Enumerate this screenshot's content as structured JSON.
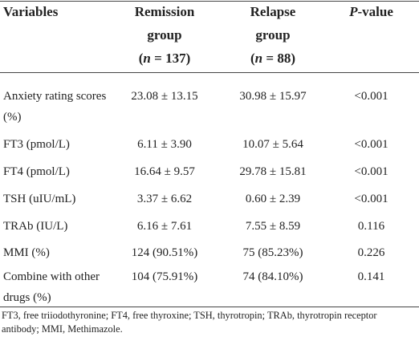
{
  "table": {
    "header": [
      {
        "lines": [
          [
            {
              "text": "Variables"
            }
          ]
        ]
      },
      {
        "lines": [
          [
            {
              "text": "Remission"
            }
          ],
          [
            {
              "text": "group"
            }
          ],
          [
            {
              "text": "("
            },
            {
              "text": "n",
              "italic": true
            },
            {
              "text": " = 137)"
            }
          ]
        ]
      },
      {
        "lines": [
          [
            {
              "text": "Relapse"
            }
          ],
          [
            {
              "text": "group"
            }
          ],
          [
            {
              "text": "("
            },
            {
              "text": "n",
              "italic": true
            },
            {
              "text": " = 88)"
            }
          ]
        ]
      },
      {
        "lines": [
          [
            {
              "text": "P",
              "italic": true
            },
            {
              "text": "-value"
            }
          ]
        ]
      }
    ],
    "rows": [
      [
        "Anxiety rating scores (%)",
        "23.08 ± 13.15",
        "30.98 ± 15.97",
        "<0.001"
      ],
      [
        "FT3 (pmol/L)",
        "6.11 ± 3.90",
        "10.07 ± 5.64",
        "<0.001"
      ],
      [
        "FT4 (pmol/L)",
        "16.64 ± 9.57",
        "29.78 ± 15.81",
        "<0.001"
      ],
      [
        "TSH (uIU/mL)",
        "3.37 ± 6.62",
        "0.60 ± 2.39",
        "<0.001"
      ],
      [
        "TRAb (IU/L)",
        "6.16 ± 7.61",
        "7.55 ± 8.59",
        "0.116"
      ],
      [
        "MMI (%)",
        "124 (90.51%)",
        "75 (85.23%)",
        "0.226"
      ],
      [
        "Combine with other drugs (%)",
        "104 (75.91%)",
        "74 (84.10%)",
        "0.141"
      ]
    ],
    "footnote": "FT3, free triiodothyronine; FT4, free thyroxine; TSH, thyrotropin; TRAb, thyrotropin receptor antibody; MMI, Methimazole."
  }
}
